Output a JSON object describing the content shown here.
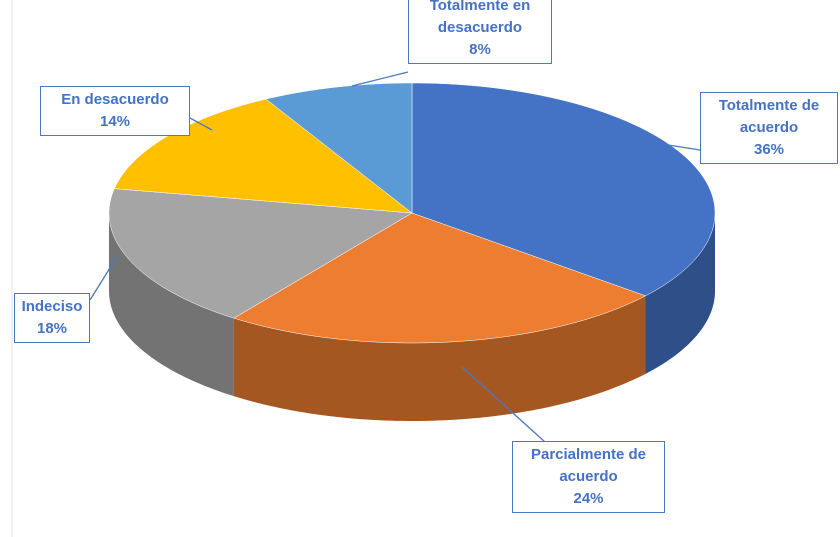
{
  "chart_data": {
    "type": "pie",
    "categories": [
      "Totalmente de acuerdo",
      "Parcialmente de acuerdo",
      "Indeciso",
      "En desacuerdo",
      "Totalmente en desacuerdo"
    ],
    "values": [
      36,
      24,
      18,
      14,
      8
    ],
    "value_labels": [
      "36%",
      "24%",
      "18%",
      "14%",
      "8%"
    ],
    "colors": [
      "#4472c4",
      "#ed7d31",
      "#a5a5a5",
      "#ffc000",
      "#5b9bd5"
    ]
  }
}
